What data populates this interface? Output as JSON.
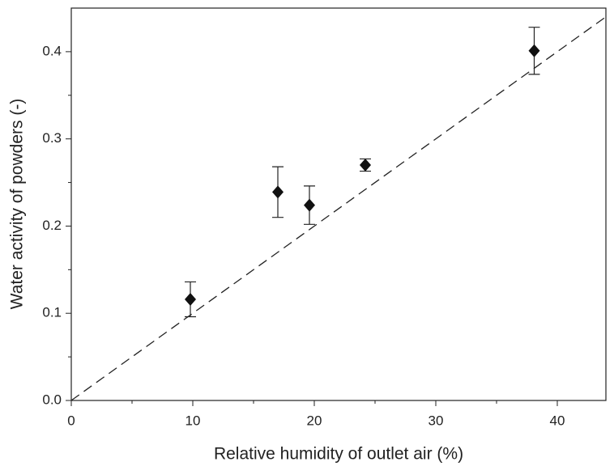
{
  "chart_data": {
    "type": "scatter",
    "xlabel": "Relative humidity of outlet air (%)",
    "ylabel": "Water activity of powders (-)",
    "x": [
      9.8,
      17.0,
      19.6,
      24.2,
      38.1
    ],
    "values": [
      0.116,
      0.239,
      0.224,
      0.27,
      0.401
    ],
    "errors": [
      0.02,
      0.029,
      0.022,
      0.007,
      0.027
    ],
    "color": "#111111",
    "line": {
      "x": [
        0,
        44
      ],
      "y": [
        0,
        0.44
      ],
      "dash": "12 7"
    },
    "xlim": [
      0,
      44
    ],
    "ylim": [
      0,
      0.45
    ],
    "xticks": [
      0,
      10,
      20,
      30,
      40
    ],
    "xminorticks": [
      5,
      15,
      25,
      35
    ],
    "yticks": [
      {
        "value": 0,
        "label": "0.0"
      },
      0.1,
      0.2,
      0.3,
      0.4
    ],
    "yminorticks": [
      0.05,
      0.15,
      0.25,
      0.35
    ]
  }
}
